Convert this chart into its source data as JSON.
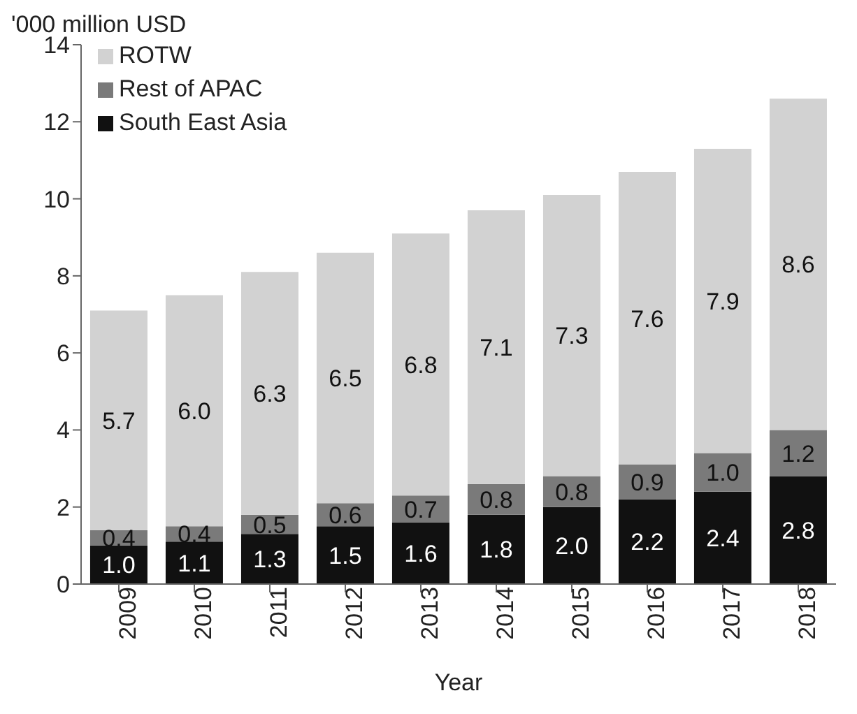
{
  "chart_data": {
    "type": "bar",
    "stacked": true,
    "ylabel": "'000 million USD",
    "xlabel": "Year",
    "categories": [
      "2009",
      "2010",
      "2011",
      "2012",
      "2013",
      "2014",
      "2015",
      "2016",
      "2017",
      "2018"
    ],
    "series": [
      {
        "name": "South East Asia",
        "color": "#111111",
        "values": [
          1.0,
          1.1,
          1.3,
          1.5,
          1.6,
          1.8,
          2.0,
          2.2,
          2.4,
          2.8
        ],
        "value_labels": [
          "1.0",
          "1.1",
          "1.3",
          "1.5",
          "1.6",
          "1.8",
          "2.0",
          "2.2",
          "2.4",
          "2.8"
        ]
      },
      {
        "name": "Rest of APAC",
        "color": "#7a7a7a",
        "values": [
          0.4,
          0.4,
          0.5,
          0.6,
          0.7,
          0.8,
          0.8,
          0.9,
          1.0,
          1.2
        ],
        "value_labels": [
          "0.4",
          "0.4",
          "0.5",
          "0.6",
          "0.7",
          "0.8",
          "0.8",
          "0.9",
          "1.0",
          "1.2"
        ]
      },
      {
        "name": "ROTW",
        "color": "#d2d2d2",
        "values": [
          5.7,
          6.0,
          6.3,
          6.5,
          6.8,
          7.1,
          7.3,
          7.6,
          7.9,
          8.6
        ],
        "value_labels": [
          "5.7",
          "6.0",
          "6.3",
          "6.5",
          "6.8",
          "7.1",
          "7.3",
          "7.6",
          "7.9",
          "8.6"
        ]
      }
    ],
    "ylim": [
      0,
      14
    ],
    "yticks": [
      0,
      2,
      4,
      6,
      8,
      10,
      12,
      14
    ],
    "grid": false,
    "legend": "top left"
  }
}
